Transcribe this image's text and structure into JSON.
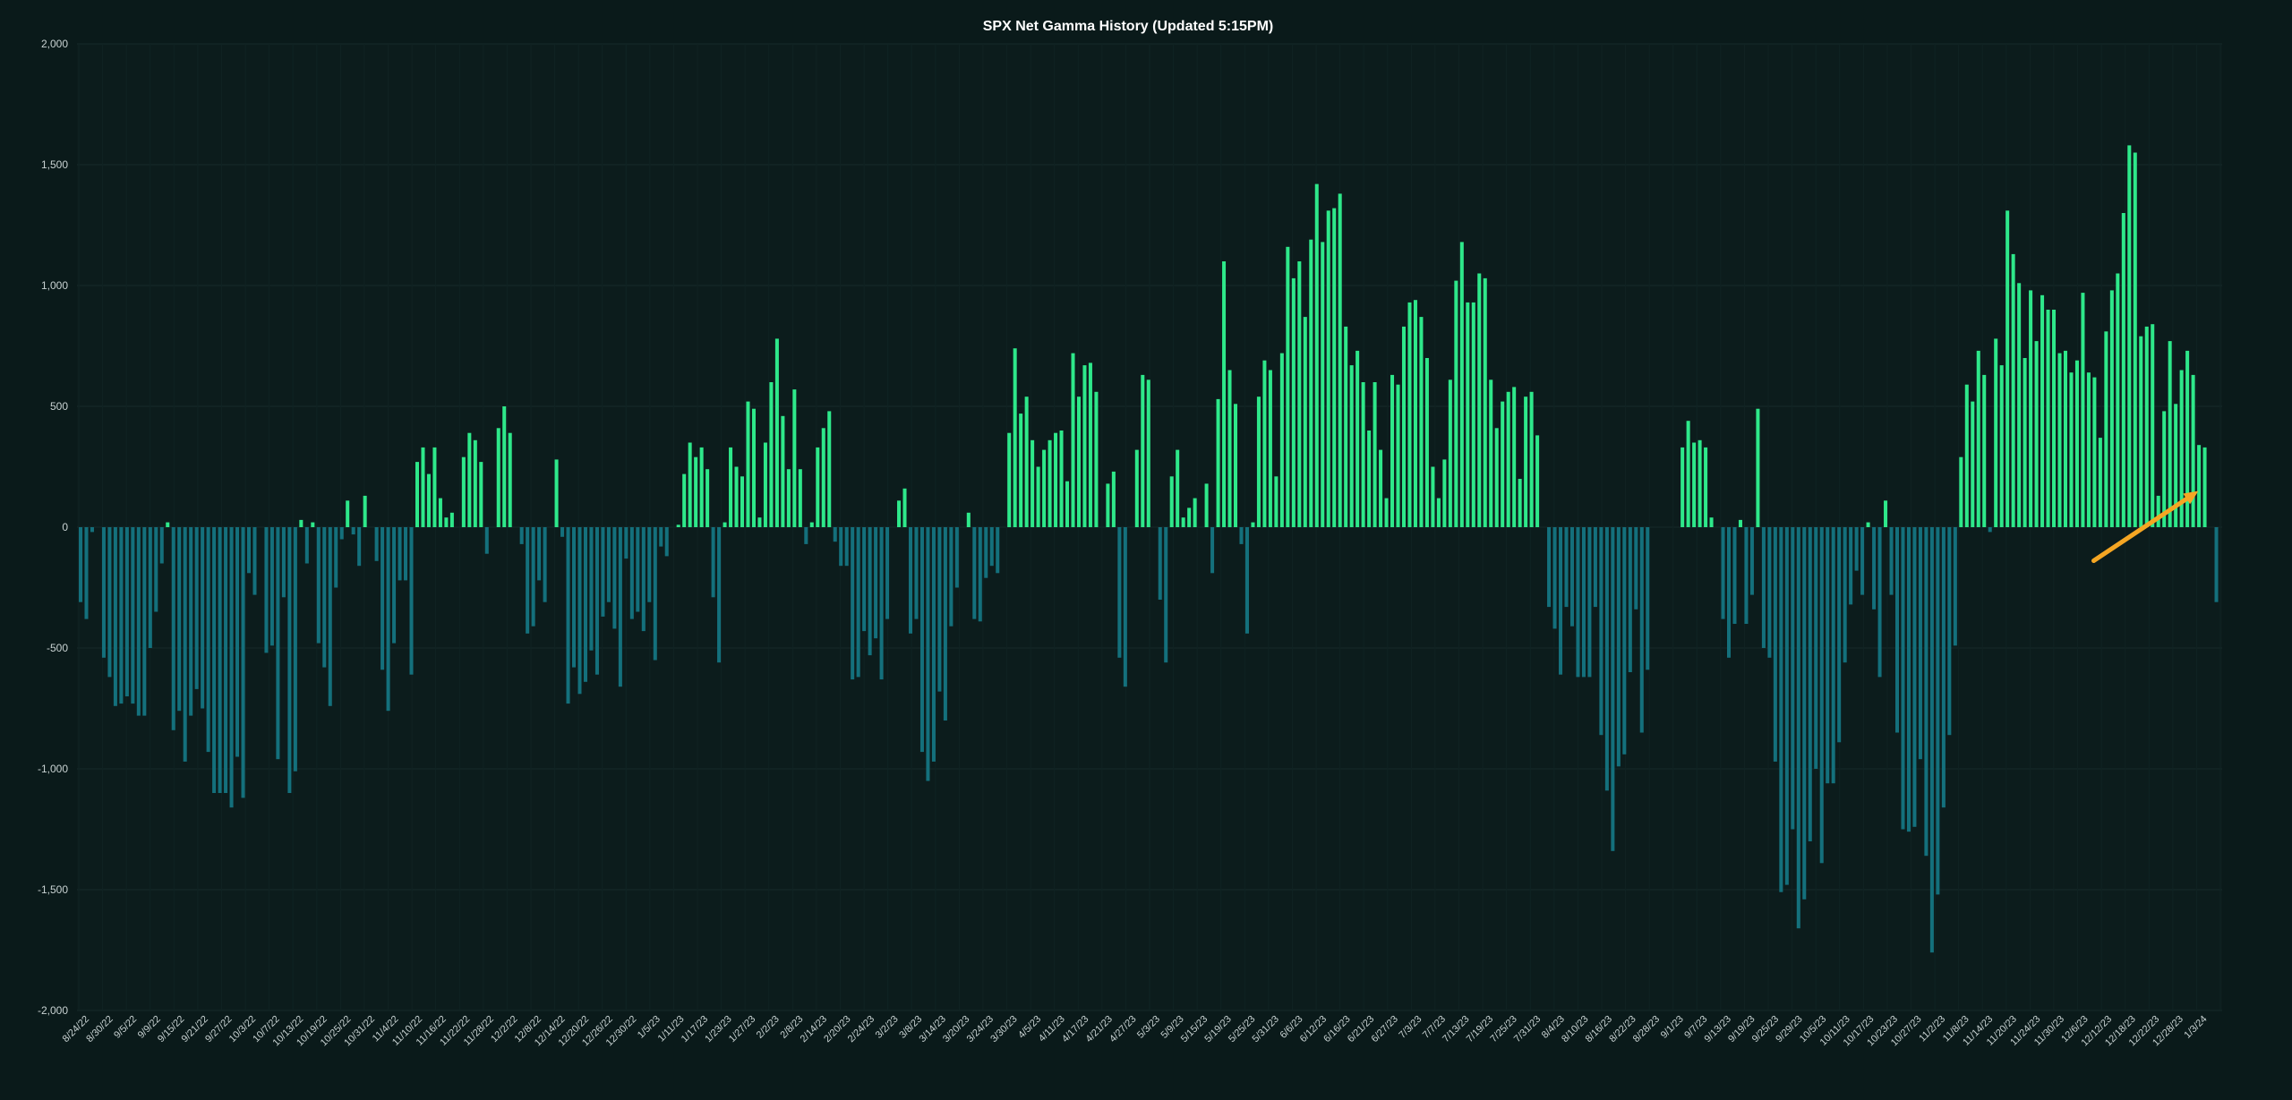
{
  "chart_data": {
    "type": "bar",
    "title": "SPX Net Gamma History (Updated 5:15PM)",
    "xlabel": "",
    "ylabel": "",
    "ylim": [
      -2000,
      2000
    ],
    "yticks": [
      2000,
      1500,
      1000,
      500,
      0,
      -500,
      -1000,
      -1500,
      -2000
    ],
    "ytick_labels": [
      "2,000",
      "1,500",
      "1,000",
      "500",
      "0",
      "-500",
      "-1,000",
      "-1,500",
      "-2,000"
    ],
    "grid": true,
    "positive_color": "#2ee88a",
    "negative_color": "#14707c",
    "annotation_color": "#f5a623",
    "annotation": "arrow pointing to latest bar",
    "xtick_labels": [
      "8/24/22",
      "8/30/22",
      "9/5/22",
      "9/9/22",
      "9/15/22",
      "9/21/22",
      "9/27/22",
      "10/3/22",
      "10/7/22",
      "10/13/22",
      "10/19/22",
      "10/25/22",
      "10/31/22",
      "11/4/22",
      "11/10/22",
      "11/16/22",
      "11/22/22",
      "11/28/22",
      "12/2/22",
      "12/8/22",
      "12/14/22",
      "12/20/22",
      "12/26/22",
      "12/30/22",
      "1/5/23",
      "1/11/23",
      "1/17/23",
      "1/23/23",
      "1/27/23",
      "2/2/23",
      "2/8/23",
      "2/14/23",
      "2/20/23",
      "2/24/23",
      "3/2/23",
      "3/8/23",
      "3/14/23",
      "3/20/23",
      "3/24/23",
      "3/30/23",
      "4/5/23",
      "4/11/23",
      "4/17/23",
      "4/21/23",
      "4/27/23",
      "5/3/23",
      "5/9/23",
      "5/15/23",
      "5/19/23",
      "5/25/23",
      "5/31/23",
      "6/6/23",
      "6/12/23",
      "6/16/23",
      "6/21/23",
      "6/27/23",
      "7/3/23",
      "7/7/23",
      "7/13/23",
      "7/19/23",
      "7/25/23",
      "7/31/23",
      "8/4/23",
      "8/10/23",
      "8/16/23",
      "8/22/23",
      "8/28/23",
      "9/1/23",
      "9/7/23",
      "9/13/23",
      "9/19/23",
      "9/25/23",
      "9/29/23",
      "10/5/23",
      "10/11/23",
      "10/17/23",
      "10/23/23",
      "10/27/23",
      "11/2/23",
      "11/8/23",
      "11/14/23",
      "11/20/23",
      "11/24/23",
      "11/30/23",
      "12/6/23",
      "12/12/23",
      "12/18/23",
      "12/22/23",
      "12/28/23",
      "1/3/24"
    ],
    "values": [
      -310,
      -380,
      -20,
      0,
      -540,
      -620,
      -740,
      -730,
      -700,
      -730,
      -780,
      -780,
      -500,
      -350,
      -150,
      20,
      -840,
      -760,
      -970,
      -780,
      -670,
      -750,
      -930,
      -1100,
      -1100,
      -1100,
      -1160,
      -950,
      -1120,
      -190,
      -280,
      0,
      -520,
      -490,
      -960,
      -290,
      -1100,
      -1010,
      30,
      -150,
      20,
      -480,
      -580,
      -740,
      -250,
      -50,
      110,
      -30,
      -160,
      130,
      0,
      -140,
      -590,
      -760,
      -480,
      -220,
      -220,
      -610,
      270,
      330,
      220,
      330,
      120,
      40,
      60,
      0,
      290,
      390,
      360,
      270,
      -110,
      0,
      410,
      500,
      390,
      0,
      -70,
      -440,
      -410,
      -220,
      -310,
      0,
      280,
      -40,
      -730,
      -580,
      -690,
      -640,
      -510,
      -610,
      -370,
      -310,
      -420,
      -660,
      -130,
      -380,
      -350,
      -430,
      -310,
      -550,
      -80,
      -120,
      0,
      10,
      220,
      350,
      290,
      330,
      240,
      -290,
      -560,
      20,
      330,
      250,
      210,
      520,
      490,
      40,
      350,
      600,
      780,
      460,
      240,
      570,
      240,
      -70,
      20,
      330,
      410,
      480,
      -60,
      -160,
      -160,
      -630,
      -620,
      -430,
      -530,
      -460,
      -630,
      -380,
      0,
      110,
      160,
      -440,
      -380,
      -930,
      -1050,
      -970,
      -680,
      -800,
      -410,
      -250,
      0,
      60,
      -380,
      -390,
      -210,
      -160,
      -190,
      0,
      390,
      740,
      470,
      540,
      360,
      250,
      320,
      360,
      390,
      400,
      190,
      720,
      540,
      670,
      680,
      560,
      0,
      180,
      230,
      -540,
      -660,
      0,
      320,
      630,
      610,
      0,
      -300,
      -560,
      210,
      320,
      40,
      80,
      120,
      0,
      180,
      -190,
      530,
      1100,
      650,
      510,
      -70,
      -440,
      20,
      540,
      690,
      650,
      210,
      720,
      1160,
      1030,
      1100,
      870,
      1190,
      1420,
      1180,
      1310,
      1320,
      1380,
      830,
      670,
      730,
      600,
      400,
      600,
      320,
      120,
      630,
      590,
      830,
      930,
      940,
      870,
      700,
      250,
      120,
      280,
      610,
      1020,
      1180,
      930,
      930,
      1050,
      1030,
      610,
      410,
      520,
      560,
      580,
      200,
      540,
      560,
      380,
      0,
      -330,
      -420,
      -610,
      -330,
      -410,
      -620,
      -620,
      -620,
      -330,
      -860,
      -1090,
      -1340,
      -990,
      -940,
      -600,
      -340,
      -850,
      -590,
      0,
      0,
      0,
      0,
      0,
      330,
      440,
      350,
      360,
      330,
      40,
      0,
      -380,
      -540,
      -400,
      30,
      -400,
      -280,
      490,
      -500,
      -540,
      -970,
      -1510,
      -1480,
      -1250,
      -1660,
      -1540,
      -1300,
      -1000,
      -1390,
      -1060,
      -1060,
      -890,
      -560,
      -320,
      -180,
      -280,
      20,
      -340,
      -620,
      110,
      -280,
      -850,
      -1250,
      -1260,
      -1240,
      -960,
      -1360,
      -1760,
      -1520,
      -1160,
      -860,
      -490,
      290,
      590,
      520,
      730,
      630,
      -20,
      780,
      670,
      1310,
      1130,
      1010,
      700,
      980,
      770,
      960,
      900,
      900,
      720,
      730,
      640,
      690,
      970,
      640,
      620,
      370,
      810,
      980,
      1050,
      1300,
      1580,
      1550,
      790,
      830,
      840,
      130,
      480,
      770,
      510,
      650,
      730,
      630,
      340,
      330,
      0,
      -310
    ]
  }
}
